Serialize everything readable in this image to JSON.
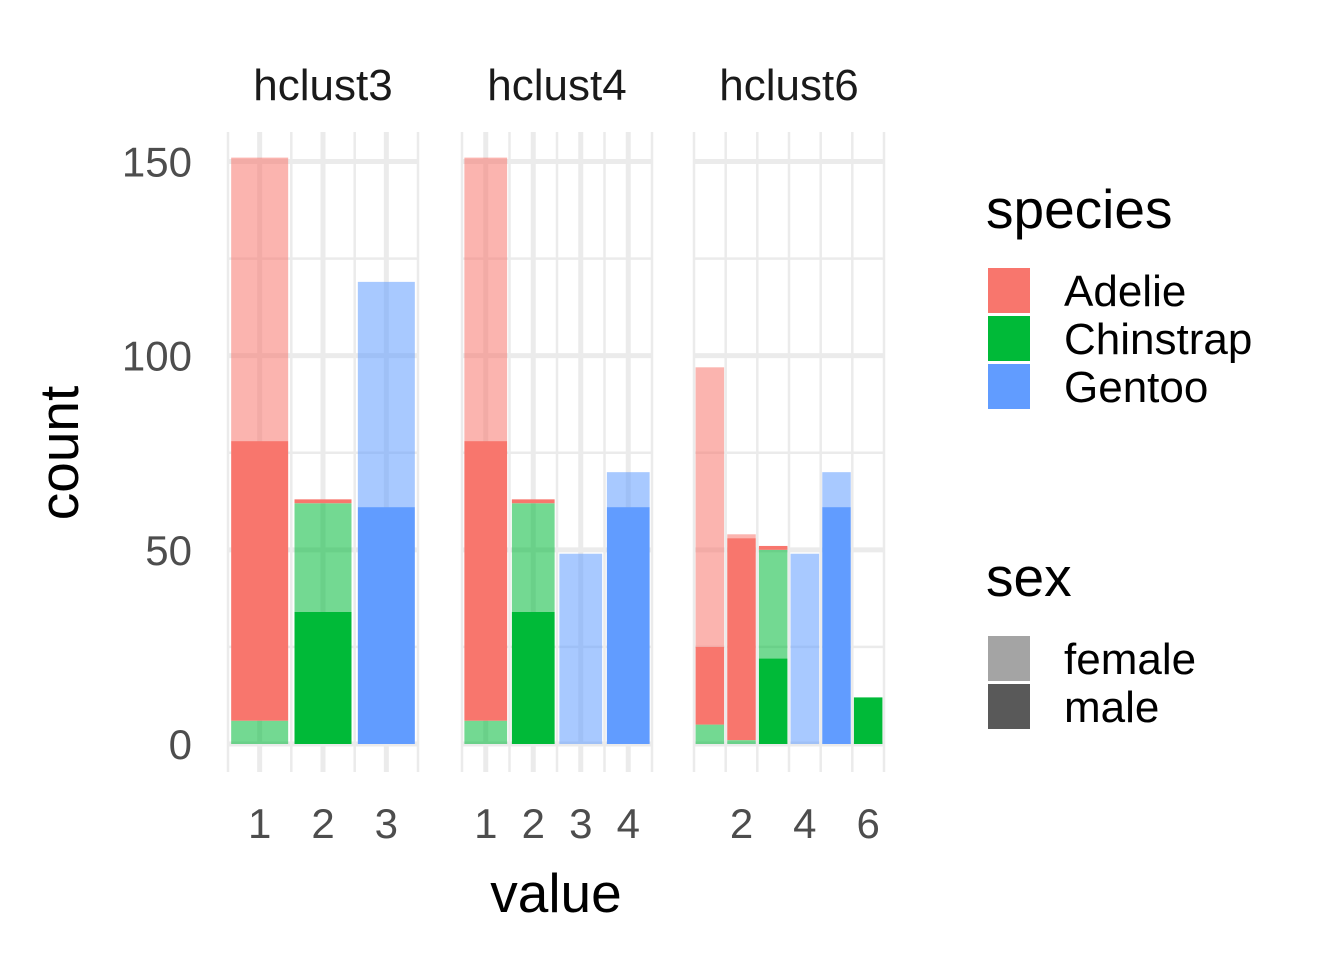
{
  "chart_data": {
    "type": "bar",
    "stacked": true,
    "facet_by": "variable",
    "xlabel": "value",
    "ylabel": "count",
    "ylim": [
      0,
      157
    ],
    "y_ticks": [
      0,
      50,
      100,
      150
    ],
    "grid": true,
    "colors": {
      "Adelie": "#F8766D",
      "Chinstrap": "#00BA38",
      "Gentoo": "#619CFF"
    },
    "alpha": {
      "female": 0.55,
      "male": 1.0
    },
    "facets": [
      {
        "name": "hclust3",
        "xlim": [
          0.5,
          3.5
        ],
        "x_ticks": [
          1,
          2,
          3
        ],
        "bars": [
          {
            "x": 1,
            "stack": [
              {
                "species": "Chinstrap",
                "sex": "female",
                "count": 6
              },
              {
                "species": "Adelie",
                "sex": "male",
                "count": 72
              },
              {
                "species": "Adelie",
                "sex": "female",
                "count": 73
              }
            ]
          },
          {
            "x": 2,
            "stack": [
              {
                "species": "Chinstrap",
                "sex": "male",
                "count": 34
              },
              {
                "species": "Chinstrap",
                "sex": "female",
                "count": 28
              },
              {
                "species": "Adelie",
                "sex": "male",
                "count": 1
              }
            ]
          },
          {
            "x": 3,
            "stack": [
              {
                "species": "Gentoo",
                "sex": "male",
                "count": 61
              },
              {
                "species": "Gentoo",
                "sex": "female",
                "count": 58
              }
            ]
          }
        ]
      },
      {
        "name": "hclust4",
        "xlim": [
          0.5,
          4.5
        ],
        "x_ticks": [
          1,
          2,
          3,
          4
        ],
        "bars": [
          {
            "x": 1,
            "stack": [
              {
                "species": "Chinstrap",
                "sex": "female",
                "count": 6
              },
              {
                "species": "Adelie",
                "sex": "male",
                "count": 72
              },
              {
                "species": "Adelie",
                "sex": "female",
                "count": 73
              }
            ]
          },
          {
            "x": 2,
            "stack": [
              {
                "species": "Chinstrap",
                "sex": "male",
                "count": 34
              },
              {
                "species": "Chinstrap",
                "sex": "female",
                "count": 28
              },
              {
                "species": "Adelie",
                "sex": "male",
                "count": 1
              }
            ]
          },
          {
            "x": 3,
            "stack": [
              {
                "species": "Gentoo",
                "sex": "female",
                "count": 49
              }
            ]
          },
          {
            "x": 4,
            "stack": [
              {
                "species": "Gentoo",
                "sex": "male",
                "count": 61
              },
              {
                "species": "Gentoo",
                "sex": "female",
                "count": 9
              }
            ]
          }
        ]
      },
      {
        "name": "hclust6",
        "xlim": [
          0.5,
          6.5
        ],
        "x_ticks": [
          2,
          4,
          6
        ],
        "bars": [
          {
            "x": 1,
            "stack": [
              {
                "species": "Chinstrap",
                "sex": "female",
                "count": 5
              },
              {
                "species": "Adelie",
                "sex": "male",
                "count": 20
              },
              {
                "species": "Adelie",
                "sex": "female",
                "count": 72
              }
            ]
          },
          {
            "x": 2,
            "stack": [
              {
                "species": "Chinstrap",
                "sex": "female",
                "count": 1
              },
              {
                "species": "Adelie",
                "sex": "male",
                "count": 52
              },
              {
                "species": "Adelie",
                "sex": "female",
                "count": 1
              }
            ]
          },
          {
            "x": 3,
            "stack": [
              {
                "species": "Chinstrap",
                "sex": "male",
                "count": 22
              },
              {
                "species": "Chinstrap",
                "sex": "female",
                "count": 28
              },
              {
                "species": "Adelie",
                "sex": "male",
                "count": 1
              }
            ]
          },
          {
            "x": 4,
            "stack": [
              {
                "species": "Gentoo",
                "sex": "female",
                "count": 49
              }
            ]
          },
          {
            "x": 5,
            "stack": [
              {
                "species": "Gentoo",
                "sex": "male",
                "count": 61
              },
              {
                "species": "Gentoo",
                "sex": "female",
                "count": 9
              }
            ]
          },
          {
            "x": 6,
            "stack": [
              {
                "species": "Chinstrap",
                "sex": "male",
                "count": 12
              }
            ]
          }
        ]
      }
    ],
    "legends": [
      {
        "title": "species",
        "entries": [
          "Adelie",
          "Chinstrap",
          "Gentoo"
        ]
      },
      {
        "title": "sex",
        "entries": [
          "female",
          "male"
        ]
      }
    ],
    "legend_position": "right"
  }
}
